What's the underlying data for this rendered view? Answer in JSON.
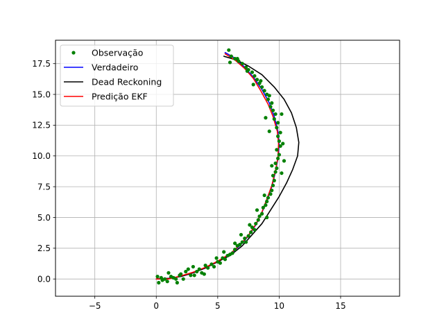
{
  "chart_data": {
    "type": "line",
    "title": "",
    "xlabel": "",
    "ylabel": "",
    "xlim": [
      -8.2,
      19.8
    ],
    "ylim": [
      -1.4,
      19.4
    ],
    "xticks": [
      -5,
      0,
      5,
      10,
      15
    ],
    "yticks": [
      0.0,
      2.5,
      5.0,
      7.5,
      10.0,
      12.5,
      15.0,
      17.5
    ],
    "xtick_labels": [
      "−5",
      "0",
      "5",
      "10",
      "15"
    ],
    "ytick_labels": [
      "0.0",
      "2.5",
      "5.0",
      "7.5",
      "10.0",
      "12.5",
      "15.0",
      "17.5"
    ],
    "grid": true,
    "legend_position": "top-left",
    "series": [
      {
        "name": "Observação",
        "kind": "scatter",
        "color": "#008000",
        "points": [
          [
            0.1,
            0.2
          ],
          [
            0.2,
            -0.3
          ],
          [
            0.4,
            0.1
          ],
          [
            0.7,
            0.0
          ],
          [
            0.9,
            -0.2
          ],
          [
            1.2,
            0.2
          ],
          [
            1.4,
            0.1
          ],
          [
            1.7,
            -0.3
          ],
          [
            1.9,
            0.3
          ],
          [
            2.2,
            0.0
          ],
          [
            2.4,
            0.6
          ],
          [
            2.6,
            0.8
          ],
          [
            2.8,
            0.3
          ],
          [
            3.0,
            1.0
          ],
          [
            3.3,
            0.6
          ],
          [
            3.5,
            0.8
          ],
          [
            3.7,
            0.5
          ],
          [
            4.0,
            1.1
          ],
          [
            4.2,
            0.9
          ],
          [
            4.5,
            1.2
          ],
          [
            4.7,
            1.0
          ],
          [
            5.0,
            1.4
          ],
          [
            5.2,
            1.3
          ],
          [
            5.4,
            1.7
          ],
          [
            5.6,
            1.6
          ],
          [
            5.8,
            1.9
          ],
          [
            6.0,
            2.0
          ],
          [
            6.2,
            2.1
          ],
          [
            6.4,
            2.4
          ],
          [
            6.6,
            2.7
          ],
          [
            6.8,
            2.8
          ],
          [
            7.0,
            3.0
          ],
          [
            7.2,
            3.3
          ],
          [
            7.3,
            3.0
          ],
          [
            7.5,
            3.5
          ],
          [
            7.7,
            3.8
          ],
          [
            7.8,
            4.2
          ],
          [
            8.0,
            4.0
          ],
          [
            8.1,
            4.5
          ],
          [
            8.3,
            4.8
          ],
          [
            8.4,
            5.1
          ],
          [
            8.6,
            5.3
          ],
          [
            8.7,
            5.8
          ],
          [
            8.9,
            6.0
          ],
          [
            9.0,
            6.3
          ],
          [
            9.1,
            6.6
          ],
          [
            9.3,
            6.9
          ],
          [
            9.4,
            7.2
          ],
          [
            9.5,
            7.6
          ],
          [
            9.6,
            8.0
          ],
          [
            9.5,
            8.4
          ],
          [
            9.7,
            8.7
          ],
          [
            9.8,
            9.0
          ],
          [
            9.7,
            9.4
          ],
          [
            9.9,
            9.8
          ],
          [
            10.0,
            10.1
          ],
          [
            9.8,
            10.5
          ],
          [
            10.1,
            10.8
          ],
          [
            10.0,
            11.2
          ],
          [
            9.9,
            11.6
          ],
          [
            10.1,
            11.9
          ],
          [
            9.8,
            12.3
          ],
          [
            9.9,
            12.7
          ],
          [
            9.6,
            13.0
          ],
          [
            9.7,
            13.4
          ],
          [
            9.5,
            13.7
          ],
          [
            9.3,
            14.0
          ],
          [
            9.4,
            14.3
          ],
          [
            9.1,
            14.6
          ],
          [
            9.0,
            15.0
          ],
          [
            8.8,
            15.3
          ],
          [
            8.6,
            15.6
          ],
          [
            8.4,
            15.9
          ],
          [
            8.2,
            16.2
          ],
          [
            8.0,
            16.5
          ],
          [
            7.8,
            16.8
          ],
          [
            7.5,
            17.0
          ],
          [
            7.3,
            17.2
          ],
          [
            7.0,
            17.5
          ],
          [
            6.7,
            17.7
          ],
          [
            6.4,
            17.9
          ],
          [
            6.1,
            18.1
          ],
          [
            5.9,
            18.6
          ],
          [
            6.0,
            17.6
          ],
          [
            6.6,
            17.9
          ],
          [
            7.4,
            16.9
          ],
          [
            8.5,
            16.1
          ],
          [
            9.2,
            14.9
          ],
          [
            10.2,
            13.4
          ],
          [
            10.3,
            11.0
          ],
          [
            9.4,
            9.2
          ],
          [
            10.2,
            8.6
          ],
          [
            8.8,
            6.8
          ],
          [
            8.2,
            5.6
          ],
          [
            7.6,
            4.4
          ],
          [
            6.9,
            3.6
          ],
          [
            6.4,
            2.9
          ],
          [
            5.5,
            2.2
          ],
          [
            4.9,
            1.7
          ],
          [
            3.9,
            0.4
          ],
          [
            3.1,
            0.3
          ],
          [
            2.0,
            0.4
          ],
          [
            1.0,
            0.5
          ],
          [
            0.5,
            -0.1
          ],
          [
            1.6,
            0.0
          ],
          [
            9.2,
            12.0
          ],
          [
            8.9,
            13.1
          ],
          [
            7.9,
            15.8
          ],
          [
            10.4,
            9.6
          ],
          [
            9.0,
            5.0
          ]
        ]
      },
      {
        "name": "Verdadeiro",
        "kind": "line",
        "color": "#0000ff",
        "points": [
          [
            0.0,
            0.0
          ],
          [
            1.0,
            0.05
          ],
          [
            2.0,
            0.2
          ],
          [
            3.0,
            0.5
          ],
          [
            4.0,
            0.9
          ],
          [
            5.0,
            1.4
          ],
          [
            6.0,
            2.0
          ],
          [
            6.8,
            2.7
          ],
          [
            7.5,
            3.5
          ],
          [
            8.1,
            4.4
          ],
          [
            8.6,
            5.4
          ],
          [
            9.0,
            6.4
          ],
          [
            9.4,
            7.5
          ],
          [
            9.7,
            8.7
          ],
          [
            9.9,
            9.8
          ],
          [
            10.0,
            10.9
          ],
          [
            9.9,
            12.0
          ],
          [
            9.6,
            13.2
          ],
          [
            9.2,
            14.3
          ],
          [
            8.6,
            15.4
          ],
          [
            7.9,
            16.4
          ],
          [
            7.1,
            17.3
          ],
          [
            6.3,
            18.0
          ],
          [
            5.6,
            18.4
          ]
        ]
      },
      {
        "name": "Dead Reckoning",
        "kind": "line",
        "color": "#000000",
        "points": [
          [
            0.0,
            0.0
          ],
          [
            1.0,
            0.05
          ],
          [
            2.0,
            0.2
          ],
          [
            3.0,
            0.5
          ],
          [
            4.0,
            0.9
          ],
          [
            5.0,
            1.4
          ],
          [
            6.0,
            1.9
          ],
          [
            7.0,
            2.7
          ],
          [
            7.8,
            3.6
          ],
          [
            8.6,
            4.5
          ],
          [
            9.3,
            5.6
          ],
          [
            10.0,
            6.7
          ],
          [
            10.6,
            7.8
          ],
          [
            11.1,
            8.9
          ],
          [
            11.5,
            10.0
          ],
          [
            11.6,
            11.1
          ],
          [
            11.4,
            12.3
          ],
          [
            11.0,
            13.5
          ],
          [
            10.4,
            14.6
          ],
          [
            9.6,
            15.6
          ],
          [
            8.6,
            16.6
          ],
          [
            7.5,
            17.3
          ],
          [
            6.5,
            17.8
          ],
          [
            5.5,
            18.1
          ]
        ]
      },
      {
        "name": "Predição EKF",
        "kind": "line",
        "color": "#ff0000",
        "points": [
          [
            0.0,
            0.0
          ],
          [
            1.0,
            0.0
          ],
          [
            2.0,
            0.25
          ],
          [
            3.0,
            0.55
          ],
          [
            4.0,
            0.95
          ],
          [
            5.0,
            1.45
          ],
          [
            6.0,
            2.05
          ],
          [
            6.8,
            2.75
          ],
          [
            7.5,
            3.55
          ],
          [
            8.1,
            4.45
          ],
          [
            8.6,
            5.45
          ],
          [
            9.0,
            6.5
          ],
          [
            9.4,
            7.6
          ],
          [
            9.7,
            8.8
          ],
          [
            9.9,
            9.9
          ],
          [
            9.95,
            11.0
          ],
          [
            9.85,
            12.0
          ],
          [
            9.5,
            13.2
          ],
          [
            9.1,
            14.2
          ],
          [
            8.5,
            15.3
          ],
          [
            7.9,
            16.3
          ],
          [
            7.2,
            17.1
          ],
          [
            6.4,
            17.8
          ],
          [
            5.6,
            18.3
          ]
        ]
      }
    ]
  }
}
